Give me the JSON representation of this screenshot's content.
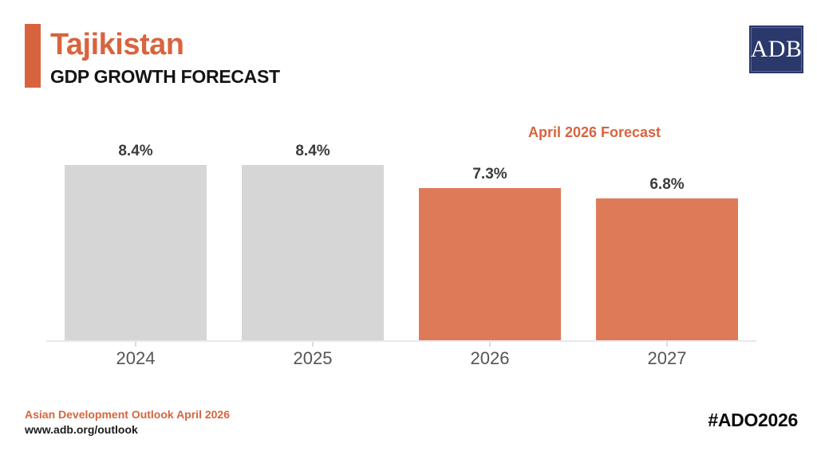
{
  "header": {
    "title": "Tajikistan",
    "subtitle": "GDP GROWTH FORECAST",
    "logo_text": "ADB"
  },
  "chart_data": {
    "type": "bar",
    "title": "Tajikistan GDP GROWTH FORECAST",
    "categories": [
      "2024",
      "2025",
      "2026",
      "2027"
    ],
    "values": [
      8.4,
      8.4,
      7.3,
      6.8
    ],
    "value_labels": [
      "8.4%",
      "8.4%",
      "7.3%",
      "6.8%"
    ],
    "bar_colors": [
      "#d6d6d6",
      "#d6d6d6",
      "#df7a59",
      "#df7a59"
    ],
    "annotation": "April 2026 Forecast",
    "unit": "%",
    "ylim": [
      0,
      8.4
    ],
    "grid": false,
    "legend_position": "none",
    "xlabel": "",
    "ylabel": ""
  },
  "footer": {
    "source": "Asian Development Outlook April 2026",
    "url": "www.adb.org/outlook",
    "hashtag": "#ADO2026"
  },
  "colors": {
    "accent_orange": "#d8643e",
    "bar_orange": "#df7a59",
    "bar_gray": "#d6d6d6",
    "logo_navy": "#2a386c"
  }
}
